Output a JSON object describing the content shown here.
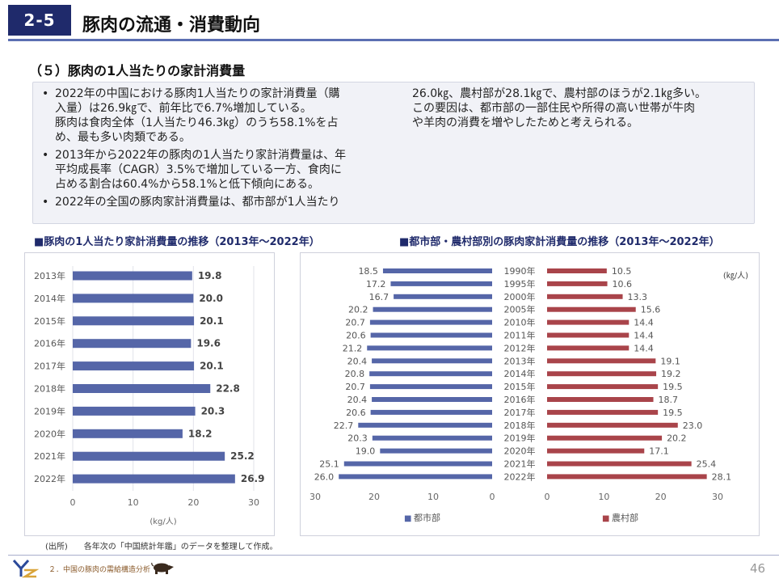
{
  "header": {
    "section_number": "2-5",
    "title": "豚肉の流通・消費動向"
  },
  "subheading": "（５）豚肉の1人当たりの家計消費量",
  "bullets_left": [
    {
      "lines": [
        "2022年の中国における豚肉1人当たりの家計消費量（購",
        "入量）は26.9㎏で、前年比で6.7%増加している。",
        "豚肉は食肉全体（1人当たり46.3㎏）のうち58.1%を占",
        "め、最も多い肉類である。"
      ]
    },
    {
      "lines": [
        "2013年から2022年の豚肉の1人当たり家計消費量は、年",
        "平均成長率（CAGR）3.5%で増加している一方、食肉に",
        "占める割合は60.4%から58.1%と低下傾向にある。"
      ]
    },
    {
      "lines": [
        "2022年の全国の豚肉家計消費量は、都市部が1人当たり"
      ]
    }
  ],
  "bullets_right_lines": [
    "26.0㎏、農村部が28.1㎏で、農村部のほうが2.1㎏多い。",
    "この要因は、都市部の一部住民や所得の高い世帯が牛肉",
    "や羊肉の消費を増やしたためと考えられる。"
  ],
  "bullet_mark": "•",
  "colors": {
    "navy": "#1f2a6b",
    "blue_bar": "#5566a8",
    "red_bar": "#a9444a"
  },
  "chart_data": [
    {
      "type": "bar",
      "orientation": "horizontal",
      "title": "■豚肉の1人当たり家計消費量の推移（2013年〜2022年）",
      "categories": [
        "2013年",
        "2014年",
        "2015年",
        "2016年",
        "2017年",
        "2018年",
        "2019年",
        "2020年",
        "2021年",
        "2022年"
      ],
      "values": [
        19.8,
        20.0,
        20.1,
        19.6,
        20.1,
        22.8,
        20.3,
        18.2,
        25.2,
        26.9
      ],
      "value_labels": [
        "19.8",
        "20.0",
        "20.1",
        "19.6",
        "20.1",
        "22.8",
        "20.3",
        "18.2",
        "25.2",
        "26.9"
      ],
      "xlim": [
        0,
        30
      ],
      "ticks": [
        "0",
        "10",
        "20",
        "30"
      ],
      "xlabel": "(kg/人)"
    },
    {
      "type": "bar",
      "orientation": "horizontal-butterfly",
      "title": "■都市部・農村部別の豚肉家計消費量の推移（2013年〜2022年）",
      "unit": "(㎏/人)",
      "categories": [
        "1990年",
        "1995年",
        "2000年",
        "2005年",
        "2010年",
        "2011年",
        "2012年",
        "2013年",
        "2014年",
        "2015年",
        "2016年",
        "2017年",
        "2018年",
        "2019年",
        "2020年",
        "2021年",
        "2022年"
      ],
      "series": [
        {
          "name": "都市部",
          "values": [
            18.5,
            17.2,
            16.7,
            20.2,
            20.7,
            20.6,
            21.2,
            20.4,
            20.8,
            20.7,
            20.4,
            20.6,
            22.7,
            20.3,
            19.0,
            25.1,
            26.0
          ],
          "labels": [
            "18.5",
            "17.2",
            "16.7",
            "20.2",
            "20.7",
            "20.6",
            "21.2",
            "20.4",
            "20.8",
            "20.7",
            "20.4",
            "20.6",
            "22.7",
            "20.3",
            "19.0",
            "25.1",
            "26.0"
          ]
        },
        {
          "name": "農村部",
          "values": [
            10.5,
            10.6,
            13.3,
            15.6,
            14.4,
            14.4,
            14.4,
            19.1,
            19.2,
            19.5,
            18.7,
            19.5,
            23.0,
            20.2,
            17.1,
            25.4,
            28.1
          ],
          "labels": [
            "10.5",
            "10.6",
            "13.3",
            "15.6",
            "14.4",
            "14.4",
            "14.4",
            "19.1",
            "19.2",
            "19.5",
            "18.7",
            "19.5",
            "23.0",
            "20.2",
            "17.1",
            "25.4",
            "28.1"
          ]
        }
      ],
      "xlim": [
        0,
        30
      ],
      "left_ticks": [
        "30",
        "20",
        "10",
        "0"
      ],
      "right_ticks": [
        "0",
        "10",
        "20",
        "30"
      ],
      "legend": [
        "都市部",
        "農村部"
      ],
      "legend_mark": "■"
    }
  ],
  "source_note": "(出所)　　各年次の「中国統計年鑑」のデータを整理して作成。",
  "footer": {
    "text": "２．中国の豚肉の需給構造分析",
    "page": "46"
  }
}
